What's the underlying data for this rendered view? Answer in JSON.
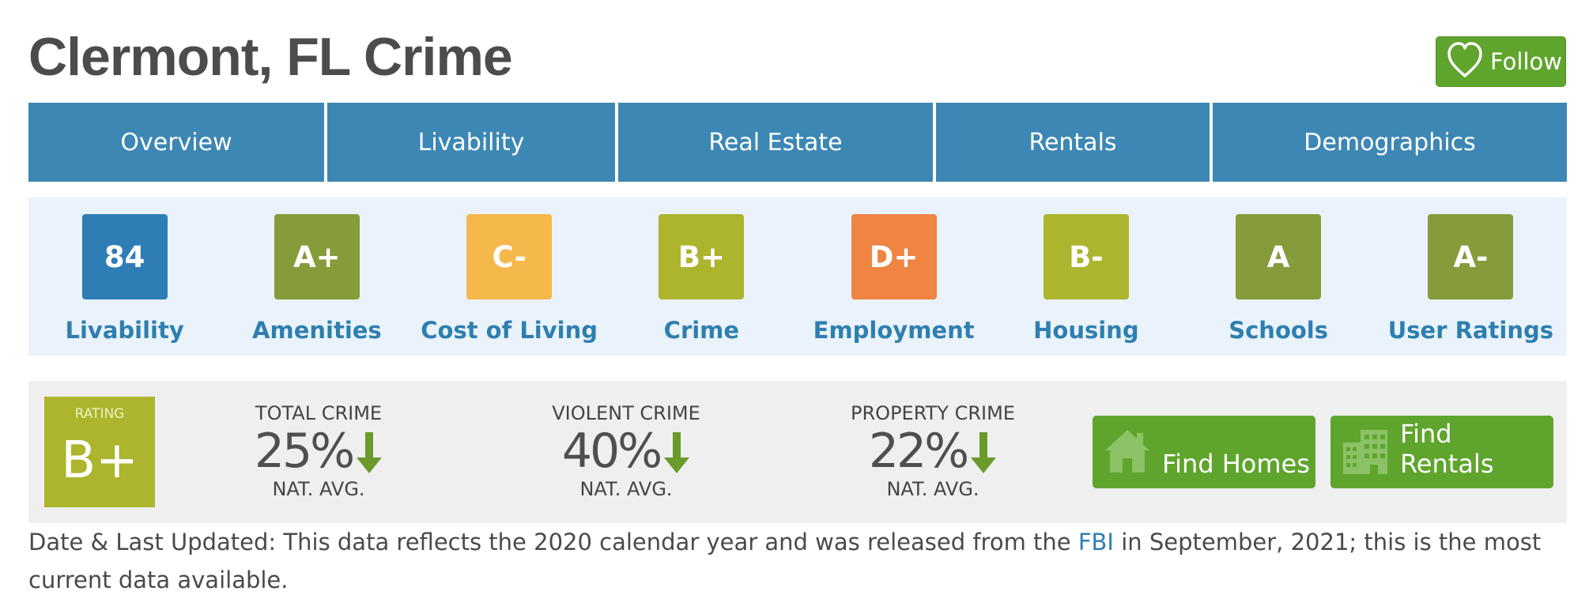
{
  "page": {
    "title": "Clermont, FL Crime"
  },
  "follow": {
    "label": "Follow"
  },
  "tabs": [
    {
      "label": "Overview"
    },
    {
      "label": "Livability"
    },
    {
      "label": "Real Estate"
    },
    {
      "label": "Rentals"
    },
    {
      "label": "Demographics"
    }
  ],
  "grades": [
    {
      "value": "84",
      "label": "Livability",
      "color": "#2e7db5"
    },
    {
      "value": "A+",
      "label": "Amenities",
      "color": "#869b3a"
    },
    {
      "value": "C-",
      "label": "Cost of Living",
      "color": "#f5b84a"
    },
    {
      "value": "B+",
      "label": "Crime",
      "color": "#acb52d"
    },
    {
      "value": "D+",
      "label": "Employment",
      "color": "#ef8443"
    },
    {
      "value": "B-",
      "label": "Housing",
      "color": "#acb52d"
    },
    {
      "value": "A",
      "label": "Schools",
      "color": "#869b3a"
    },
    {
      "value": "A-",
      "label": "User Ratings",
      "color": "#869b3a"
    }
  ],
  "crime": {
    "rating_caption": "RATING",
    "rating_value": "B+",
    "rating_color": "#acb52d",
    "arrow_color": "#6b9a2c",
    "stats": [
      {
        "title": "TOTAL CRIME",
        "value": "25%",
        "sub": "NAT. AVG.",
        "direction": "down"
      },
      {
        "title": "VIOLENT CRIME",
        "value": "40%",
        "sub": "NAT. AVG.",
        "direction": "down"
      },
      {
        "title": "PROPERTY CRIME",
        "value": "22%",
        "sub": "NAT. AVG.",
        "direction": "down"
      }
    ],
    "find_homes_label": "Find Homes",
    "find_rentals_label": "Find Rentals",
    "button_color": "#5fa52d"
  },
  "footnote": {
    "before": "Date & Last Updated: This data reflects the 2020 calendar year and was released from the ",
    "link": "FBI",
    "after": " in September, 2021; this is the most current data available."
  }
}
